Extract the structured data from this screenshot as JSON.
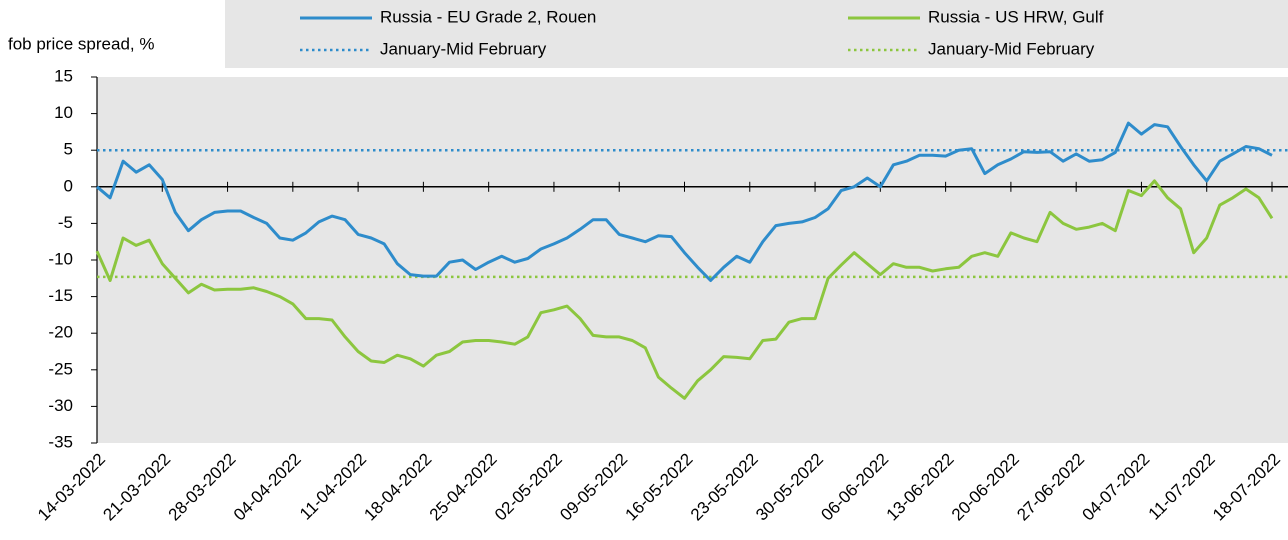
{
  "chart_data": {
    "type": "line",
    "y_label": "fob price spread, %",
    "x": [
      "14-03-2022",
      "15-03-2022",
      "16-03-2022",
      "17-03-2022",
      "18-03-2022",
      "21-03-2022",
      "22-03-2022",
      "23-03-2022",
      "24-03-2022",
      "25-03-2022",
      "28-03-2022",
      "29-03-2022",
      "30-03-2022",
      "31-03-2022",
      "01-04-2022",
      "04-04-2022",
      "05-04-2022",
      "06-04-2022",
      "07-04-2022",
      "08-04-2022",
      "11-04-2022",
      "12-04-2022",
      "13-04-2022",
      "14-04-2022",
      "15-04-2022",
      "18-04-2022",
      "19-04-2022",
      "20-04-2022",
      "21-04-2022",
      "22-04-2022",
      "25-04-2022",
      "26-04-2022",
      "27-04-2022",
      "28-04-2022",
      "29-04-2022",
      "02-05-2022",
      "03-05-2022",
      "04-05-2022",
      "05-05-2022",
      "06-05-2022",
      "09-05-2022",
      "10-05-2022",
      "11-05-2022",
      "12-05-2022",
      "13-05-2022",
      "16-05-2022",
      "17-05-2022",
      "18-05-2022",
      "19-05-2022",
      "20-05-2022",
      "23-05-2022",
      "24-05-2022",
      "25-05-2022",
      "26-05-2022",
      "27-05-2022",
      "30-05-2022",
      "31-05-2022",
      "01-06-2022",
      "02-06-2022",
      "03-06-2022",
      "06-06-2022",
      "07-06-2022",
      "08-06-2022",
      "09-06-2022",
      "10-06-2022",
      "13-06-2022",
      "14-06-2022",
      "15-06-2022",
      "16-06-2022",
      "17-06-2022",
      "20-06-2022",
      "21-06-2022",
      "22-06-2022",
      "23-06-2022",
      "24-06-2022",
      "27-06-2022",
      "28-06-2022",
      "29-06-2022",
      "30-06-2022",
      "01-07-2022",
      "04-07-2022",
      "05-07-2022",
      "06-07-2022",
      "07-07-2022",
      "08-07-2022",
      "11-07-2022",
      "12-07-2022",
      "13-07-2022",
      "14-07-2022",
      "15-07-2022",
      "18-07-2022"
    ],
    "series": [
      {
        "name": "Russia - EU Grade 2, Rouen",
        "color": "#2e8ccb",
        "values": [
          0,
          -1.5,
          3.5,
          2,
          3,
          1,
          -3.5,
          -6,
          -4.5,
          -3.5,
          -3.3,
          -3.3,
          -4.2,
          -5,
          -7,
          -7.3,
          -6.3,
          -4.8,
          -4,
          -4.5,
          -6.5,
          -7,
          -7.8,
          -10.5,
          -12,
          -12.2,
          -12.2,
          -10.3,
          -10,
          -11.3,
          -10.3,
          -9.5,
          -10.3,
          -9.8,
          -8.5,
          -7.8,
          -7,
          -5.8,
          -4.5,
          -4.5,
          -6.5,
          -7,
          -7.5,
          -6.7,
          -6.8,
          -9,
          -11,
          -12.8,
          -11,
          -9.5,
          -10.3,
          -7.5,
          -5.3,
          -5,
          -4.8,
          -4.2,
          -3,
          -0.5,
          0,
          1.2,
          0,
          3,
          3.5,
          4.3,
          4.3,
          4.2,
          5,
          5.2,
          1.8,
          3,
          3.8,
          4.8,
          4.7,
          4.8,
          3.5,
          4.5,
          3.5,
          3.7,
          4.7,
          8.7,
          7.2,
          8.5,
          8.2,
          5.5,
          3,
          0.8,
          3.5,
          4.5,
          5.5,
          5.2,
          4.3
        ]
      },
      {
        "name": "Russia - US HRW, Gulf",
        "color": "#8cc63f",
        "values": [
          -8.8,
          -12.8,
          -7,
          -8,
          -7.3,
          -10.5,
          -12.5,
          -14.5,
          -13.3,
          -14.1,
          -14,
          -14,
          -13.8,
          -14.3,
          -15,
          -16,
          -18,
          -18,
          -18.2,
          -20.5,
          -22.5,
          -23.8,
          -24,
          -23,
          -23.5,
          -24.5,
          -23,
          -22.5,
          -21.2,
          -21,
          -21,
          -21.2,
          -21.5,
          -20.5,
          -17.2,
          -16.8,
          -16.3,
          -18,
          -20.3,
          -20.5,
          -20.5,
          -21,
          -22,
          -26,
          -27.5,
          -28.9,
          -26.5,
          -25,
          -23.2,
          -23.3,
          -23.5,
          -21,
          -20.8,
          -18.5,
          -18,
          -18,
          -12.5,
          -10.7,
          -9,
          -10.5,
          -12,
          -10.5,
          -11,
          -11,
          -11.5,
          -11.2,
          -11,
          -9.5,
          -9,
          -9.5,
          -6.3,
          -7,
          -7.5,
          -3.5,
          -5,
          -5.8,
          -5.5,
          -5,
          -6,
          -0.5,
          -1.2,
          0.8,
          -1.5,
          -3,
          -9,
          -7,
          -2.5,
          -1.5,
          -0.3,
          -1.5,
          -4.3
        ]
      }
    ],
    "reference_lines": [
      {
        "name": "January-Mid February",
        "color": "#2e8ccb",
        "value": 5
      },
      {
        "name": "January-Mid February",
        "color": "#8cc63f",
        "value": -12.3
      }
    ],
    "xticks": [
      "14-03-2022",
      "21-03-2022",
      "28-03-2022",
      "04-04-2022",
      "11-04-2022",
      "18-04-2022",
      "25-04-2022",
      "02-05-2022",
      "09-05-2022",
      "16-05-2022",
      "23-05-2022",
      "30-05-2022",
      "06-06-2022",
      "13-06-2022",
      "20-06-2022",
      "27-06-2022",
      "04-07-2022",
      "11-07-2022",
      "18-07-2022"
    ],
    "ylim": [
      -35,
      15
    ],
    "yticks": [
      -35,
      -30,
      -25,
      -20,
      -15,
      -10,
      -5,
      0,
      5,
      10,
      15
    ]
  }
}
